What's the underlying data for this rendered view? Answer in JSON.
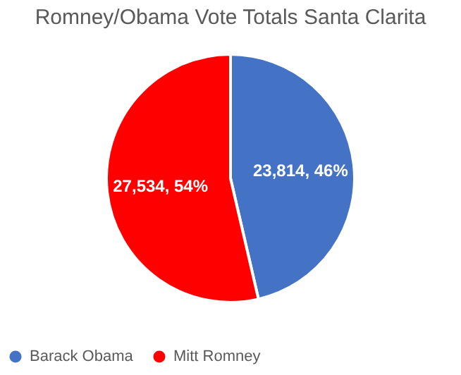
{
  "chart_data": {
    "type": "pie",
    "title": "Romney/Obama Vote Totals Santa Clarita",
    "categories": [
      "Barack Obama",
      "Mitt Romney"
    ],
    "values": [
      23814,
      27534
    ],
    "colors": [
      "#4472c4",
      "#ff0000"
    ],
    "value_labels": [
      "23,814, 46%",
      "27,534, 54%"
    ],
    "legend": "bottom"
  }
}
